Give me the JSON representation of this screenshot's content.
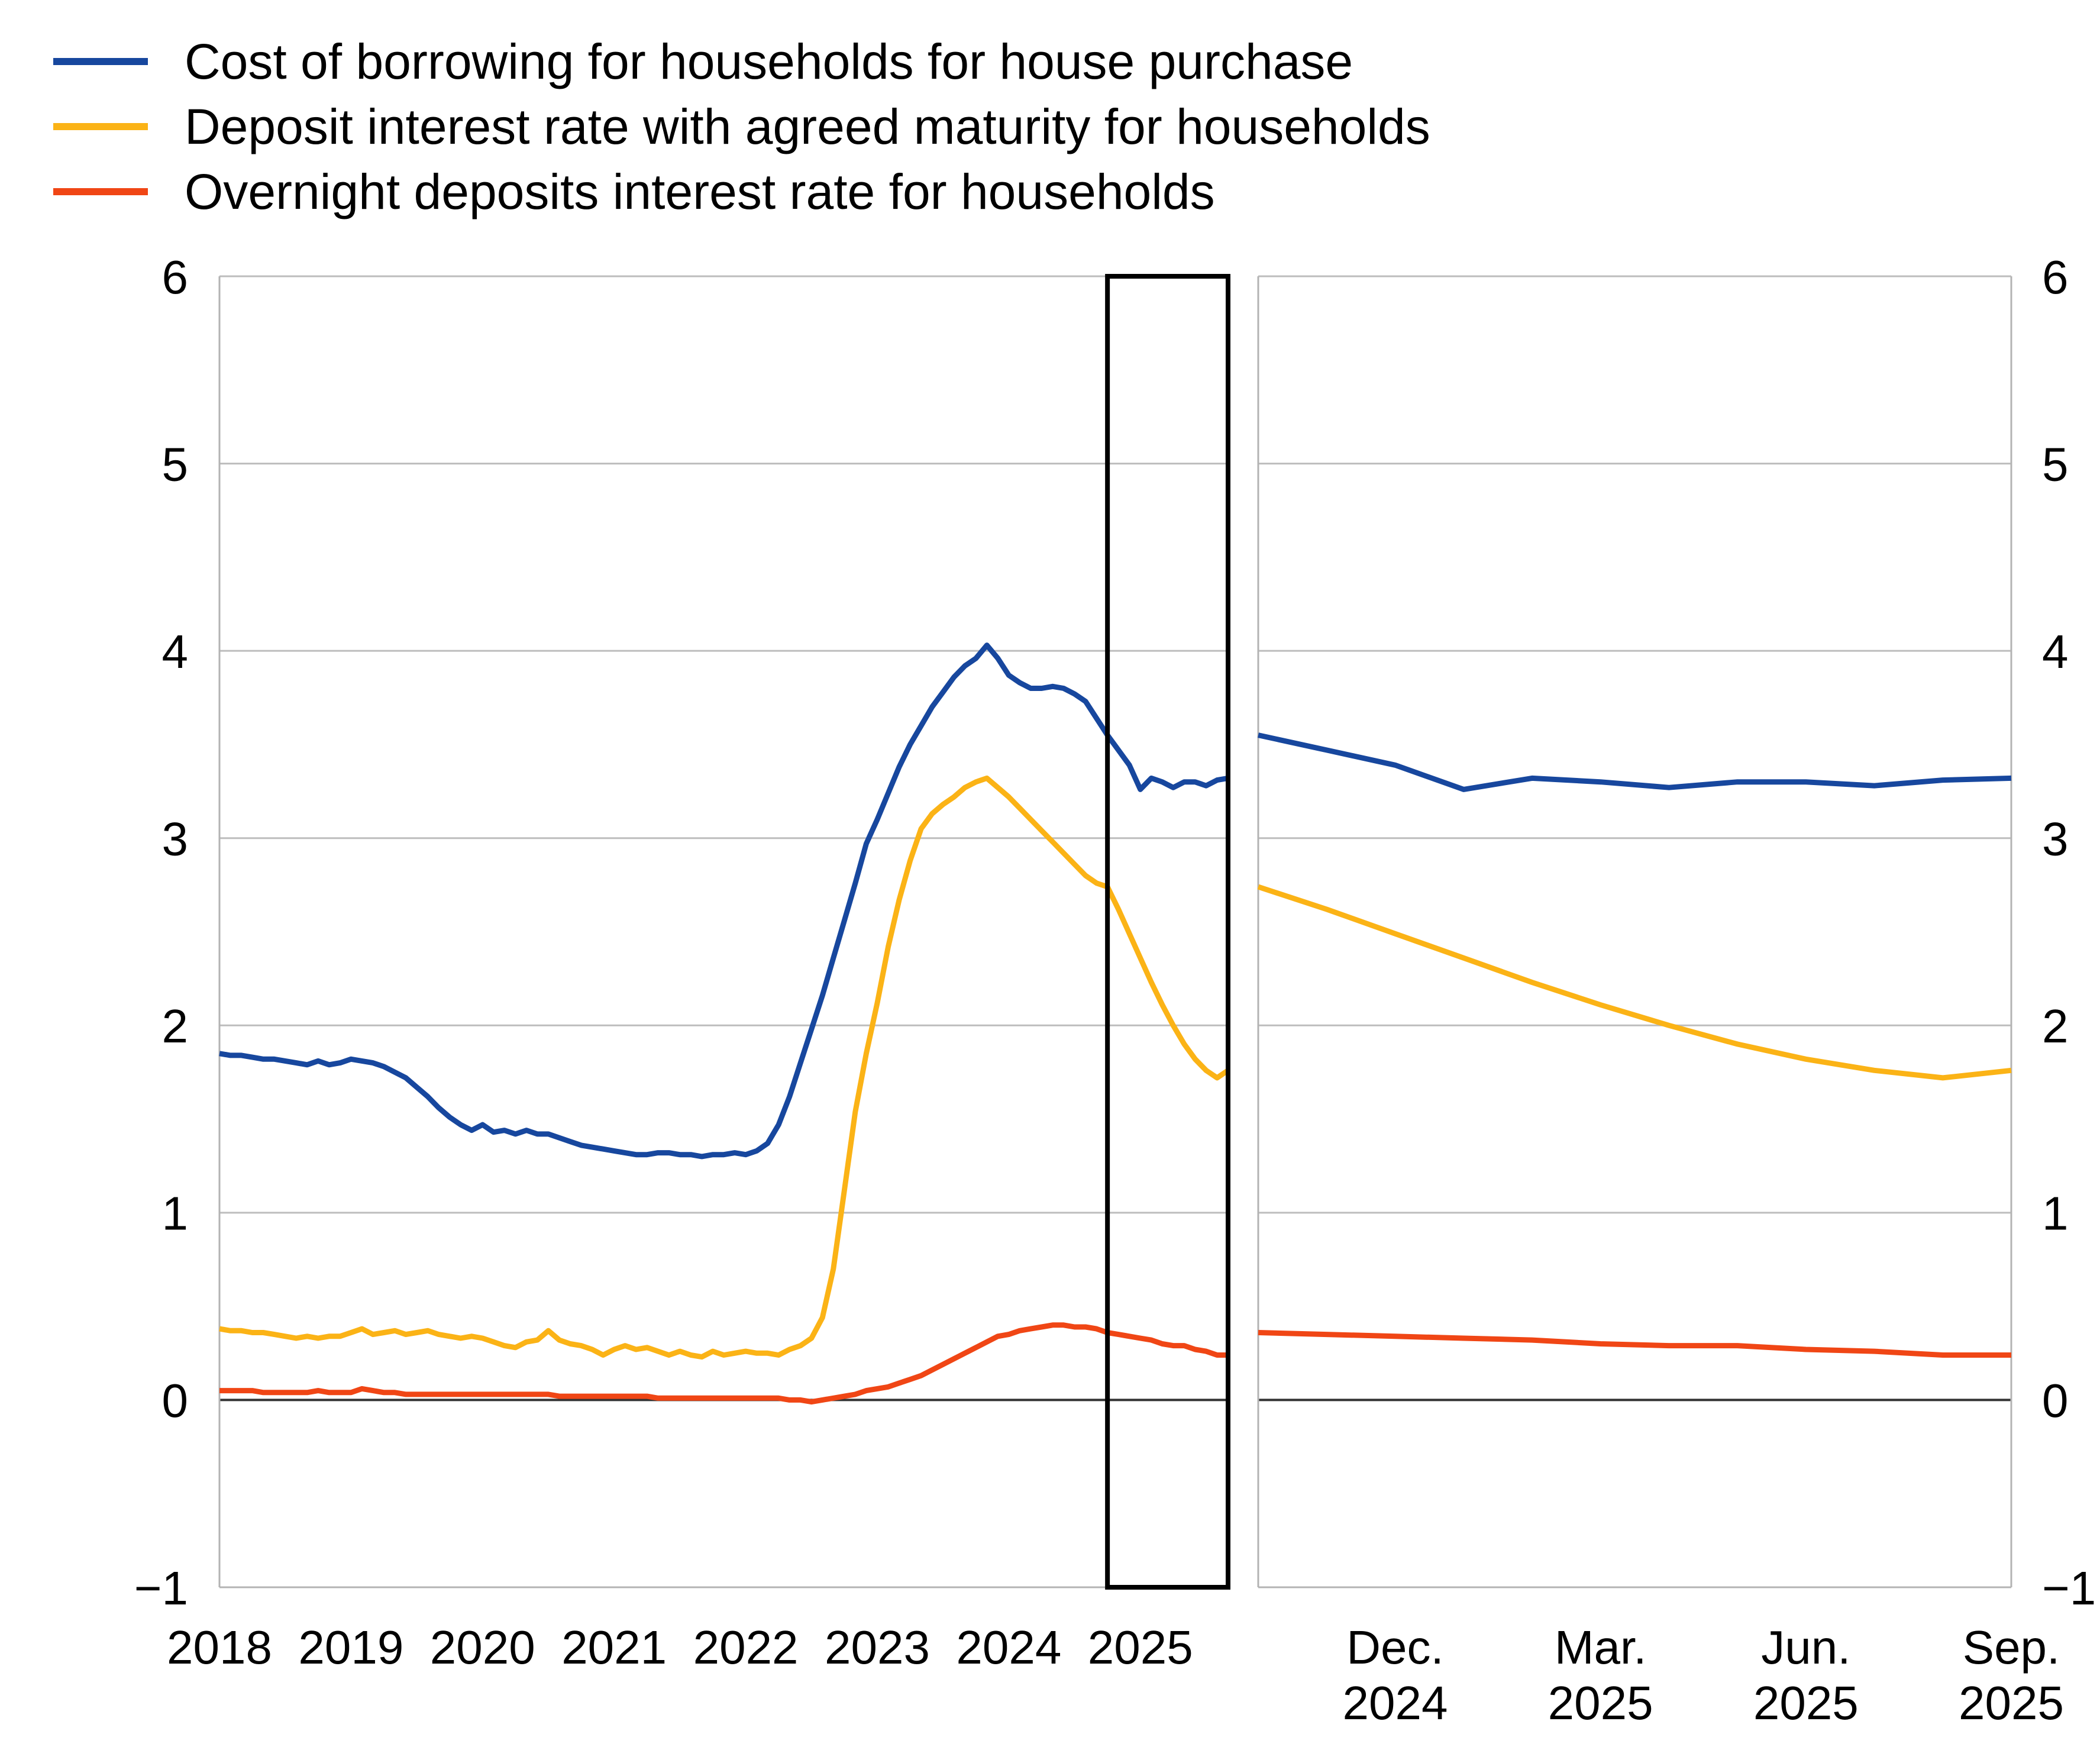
{
  "chart_data": {
    "type": "line",
    "title": "",
    "colors": {
      "cost_of_borrowing": "#17479E",
      "deposit_agreed_maturity": "#FBB316",
      "overnight_deposits": "#F04615",
      "gridline": "#BDBDBD",
      "zero_line": "#333333",
      "axis_spine": "#B3B3B3",
      "highlight_box": "#000000",
      "text": "#000000"
    },
    "legend": [
      {
        "key": "cost_of_borrowing",
        "label": "Cost of borrowing for households for house purchase"
      },
      {
        "key": "deposit_agreed_maturity",
        "label": "Deposit interest rate with agreed maturity for households"
      },
      {
        "key": "overnight_deposits",
        "label": "Overnight deposits interest rate for households"
      }
    ],
    "y_axis": {
      "min": -1,
      "max": 6,
      "tick_values": [
        6,
        5,
        4,
        3,
        2,
        1,
        0,
        -1
      ],
      "tick_labels": [
        "6",
        "5",
        "4",
        "3",
        "2",
        "1",
        "0",
        "−1"
      ],
      "shown_on_left": true,
      "shown_on_right": true,
      "grid": true
    },
    "left_panel": {
      "x_tick_labels": [
        "2018",
        "2019",
        "2020",
        "2021",
        "2022",
        "2023",
        "2024",
        "2025"
      ],
      "x_tick_month_indices": [
        0,
        12,
        24,
        36,
        48,
        60,
        72,
        84
      ],
      "highlight_window_start_index": 81,
      "series": [
        {
          "key": "cost_of_borrowing",
          "values": [
            1.85,
            1.84,
            1.84,
            1.83,
            1.82,
            1.82,
            1.81,
            1.8,
            1.79,
            1.81,
            1.79,
            1.8,
            1.82,
            1.81,
            1.8,
            1.78,
            1.75,
            1.72,
            1.67,
            1.62,
            1.56,
            1.51,
            1.47,
            1.44,
            1.47,
            1.43,
            1.44,
            1.42,
            1.44,
            1.42,
            1.42,
            1.4,
            1.38,
            1.36,
            1.35,
            1.34,
            1.33,
            1.32,
            1.31,
            1.31,
            1.32,
            1.32,
            1.31,
            1.31,
            1.3,
            1.31,
            1.31,
            1.32,
            1.31,
            1.33,
            1.37,
            1.47,
            1.62,
            1.8,
            1.98,
            2.16,
            2.36,
            2.56,
            2.76,
            2.97,
            3.1,
            3.24,
            3.38,
            3.5,
            3.6,
            3.7,
            3.78,
            3.86,
            3.92,
            3.96,
            4.03,
            3.96,
            3.87,
            3.83,
            3.8,
            3.8,
            3.81,
            3.8,
            3.77,
            3.73,
            3.64,
            3.55,
            3.47,
            3.39,
            3.26,
            3.32,
            3.3,
            3.27,
            3.3,
            3.3,
            3.28,
            3.31,
            3.32
          ]
        },
        {
          "key": "deposit_agreed_maturity",
          "values": [
            0.38,
            0.37,
            0.37,
            0.36,
            0.36,
            0.35,
            0.34,
            0.33,
            0.34,
            0.33,
            0.34,
            0.34,
            0.36,
            0.38,
            0.35,
            0.36,
            0.37,
            0.35,
            0.36,
            0.37,
            0.35,
            0.34,
            0.33,
            0.34,
            0.33,
            0.31,
            0.29,
            0.28,
            0.31,
            0.32,
            0.37,
            0.32,
            0.3,
            0.29,
            0.27,
            0.24,
            0.27,
            0.29,
            0.27,
            0.28,
            0.26,
            0.24,
            0.26,
            0.24,
            0.23,
            0.26,
            0.24,
            0.25,
            0.26,
            0.25,
            0.25,
            0.24,
            0.27,
            0.29,
            0.33,
            0.44,
            0.7,
            1.12,
            1.54,
            1.85,
            2.12,
            2.42,
            2.67,
            2.88,
            3.05,
            3.13,
            3.18,
            3.22,
            3.27,
            3.3,
            3.32,
            3.27,
            3.22,
            3.16,
            3.1,
            3.04,
            2.98,
            2.92,
            2.86,
            2.8,
            2.76,
            2.74,
            2.62,
            2.49,
            2.36,
            2.23,
            2.11,
            2.0,
            1.9,
            1.82,
            1.76,
            1.72,
            1.76
          ]
        },
        {
          "key": "overnight_deposits",
          "values": [
            0.05,
            0.05,
            0.05,
            0.05,
            0.04,
            0.04,
            0.04,
            0.04,
            0.04,
            0.05,
            0.04,
            0.04,
            0.04,
            0.06,
            0.05,
            0.04,
            0.04,
            0.03,
            0.03,
            0.03,
            0.03,
            0.03,
            0.03,
            0.03,
            0.03,
            0.03,
            0.03,
            0.03,
            0.03,
            0.03,
            0.03,
            0.02,
            0.02,
            0.02,
            0.02,
            0.02,
            0.02,
            0.02,
            0.02,
            0.02,
            0.01,
            0.01,
            0.01,
            0.01,
            0.01,
            0.01,
            0.01,
            0.01,
            0.01,
            0.01,
            0.01,
            0.01,
            0.0,
            0.0,
            -0.01,
            0.0,
            0.01,
            0.02,
            0.03,
            0.05,
            0.06,
            0.07,
            0.09,
            0.11,
            0.13,
            0.16,
            0.19,
            0.22,
            0.25,
            0.28,
            0.31,
            0.34,
            0.35,
            0.37,
            0.38,
            0.39,
            0.4,
            0.4,
            0.39,
            0.39,
            0.38,
            0.36,
            0.35,
            0.34,
            0.33,
            0.32,
            0.3,
            0.29,
            0.29,
            0.27,
            0.26,
            0.24,
            0.24
          ]
        }
      ]
    },
    "right_panel": {
      "x_ticks": [
        {
          "line1": "Dec.",
          "line2": "2024",
          "month_index": 2
        },
        {
          "line1": "Mar.",
          "line2": "2025",
          "month_index": 5
        },
        {
          "line1": "Jun.",
          "line2": "2025",
          "month_index": 8
        },
        {
          "line1": "Sep.",
          "line2": "2025",
          "month_index": 11
        }
      ],
      "series": [
        {
          "key": "cost_of_borrowing",
          "values": [
            3.55,
            3.47,
            3.39,
            3.26,
            3.32,
            3.3,
            3.27,
            3.3,
            3.3,
            3.28,
            3.31,
            3.32
          ]
        },
        {
          "key": "deposit_agreed_maturity",
          "values": [
            2.74,
            2.62,
            2.49,
            2.36,
            2.23,
            2.11,
            2.0,
            1.9,
            1.82,
            1.76,
            1.72,
            1.76
          ]
        },
        {
          "key": "overnight_deposits",
          "values": [
            0.36,
            0.35,
            0.34,
            0.33,
            0.32,
            0.3,
            0.29,
            0.29,
            0.27,
            0.26,
            0.24,
            0.24
          ]
        }
      ]
    }
  }
}
